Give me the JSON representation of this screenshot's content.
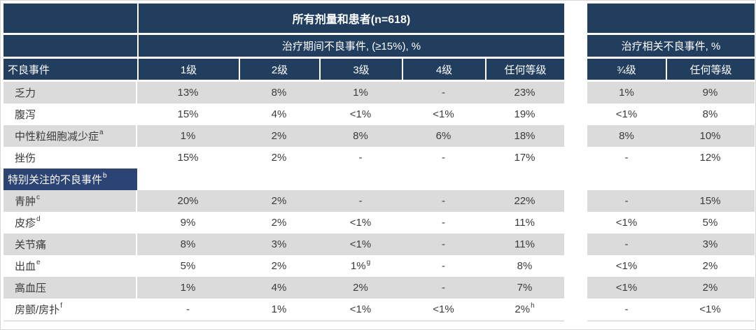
{
  "chart_data": {
    "type": "table",
    "title": "所有剂量和患者(n=618)",
    "left_group_header": "治疗期间不良事件, (≥15%), %",
    "right_group_header": "治疗相关不良事件, %",
    "event_col_header": "不良事件",
    "left_grade_columns": [
      "1级",
      "2级",
      "3级",
      "4级",
      "任何等级"
    ],
    "right_grade_columns": [
      "¾级",
      "任何等级"
    ],
    "rows": [
      {
        "label": "乏力",
        "left": [
          "13%",
          "8%",
          "1%",
          "-",
          "23%"
        ],
        "right": [
          "1%",
          "9%"
        ]
      },
      {
        "label": "腹泻",
        "left": [
          "15%",
          "4%",
          "<1%",
          "<1%",
          "19%"
        ],
        "right": [
          "<1%",
          "8%"
        ]
      },
      {
        "label": "中性粒细胞减少症",
        "sup": "a",
        "left": [
          "1%",
          "2%",
          "8%",
          "6%",
          "18%"
        ],
        "right": [
          "8%",
          "10%"
        ]
      },
      {
        "label": "挫伤",
        "left": [
          "15%",
          "2%",
          "-",
          "-",
          "17%"
        ],
        "right": [
          "-",
          "12%"
        ]
      },
      {
        "type": "section",
        "label": "特别关注的不良事件",
        "sup": "b"
      },
      {
        "label": "青肿",
        "sup": "c",
        "left": [
          "20%",
          "2%",
          "-",
          "-",
          "22%"
        ],
        "right": [
          "-",
          "15%"
        ]
      },
      {
        "label": "皮疹",
        "sup": "d",
        "left": [
          "9%",
          "2%",
          "<1%",
          "-",
          "11%"
        ],
        "right": [
          "<1%",
          "5%"
        ]
      },
      {
        "label": "关节痛",
        "left": [
          "8%",
          "3%",
          "<1%",
          "-",
          "11%"
        ],
        "right": [
          "-",
          "3%"
        ]
      },
      {
        "label": "出血",
        "sup": "e",
        "left": [
          "5%",
          "2%",
          {
            "t": "1%",
            "sup": "g"
          },
          "-",
          "8%"
        ],
        "right": [
          "<1%",
          "2%"
        ]
      },
      {
        "label": "高血压",
        "left": [
          "1%",
          "4%",
          "2%",
          "-",
          "7%"
        ],
        "right": [
          "<1%",
          "2%"
        ]
      },
      {
        "label": "房颤/房扑",
        "sup": "f",
        "left": [
          "-",
          "1%",
          "<1%",
          "<1%",
          {
            "t": "2%",
            "sup": "h"
          }
        ],
        "right": [
          "-",
          "<1%"
        ]
      }
    ]
  },
  "colors": {
    "header_navy": "#223e5f",
    "section_navy": "#2c4473",
    "row_shade": "#dbdbdb",
    "body_text": "#3b3b3b"
  }
}
